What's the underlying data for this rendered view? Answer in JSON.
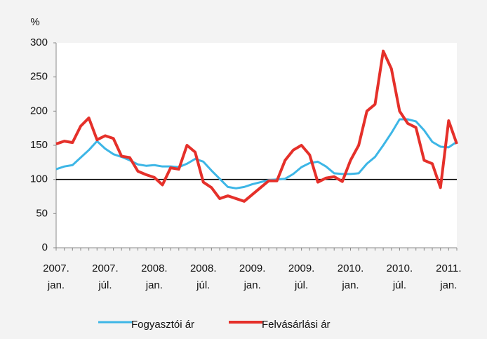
{
  "chart_data": {
    "type": "line",
    "y_label": "%",
    "categories": [
      "2007. jan.",
      null,
      null,
      null,
      null,
      null,
      "2007. júl.",
      null,
      null,
      null,
      null,
      null,
      "2008. jan.",
      null,
      null,
      null,
      null,
      null,
      "2008. júl.",
      null,
      null,
      null,
      null,
      null,
      "2009. jan.",
      null,
      null,
      null,
      null,
      null,
      "2009. júl.",
      null,
      null,
      null,
      null,
      null,
      "2010. jan.",
      null,
      null,
      null,
      null,
      null,
      "2010. júl.",
      null,
      null,
      null,
      null,
      null,
      "2011. jan.",
      null
    ],
    "series": [
      {
        "name": "Fogyasztói ár",
        "color": "#3db6e6",
        "values": [
          115,
          119,
          121,
          132,
          143,
          156,
          145,
          137,
          133,
          128,
          122,
          120,
          121,
          119,
          119,
          118,
          123,
          130,
          126,
          113,
          101,
          89,
          87,
          89,
          93,
          96,
          99,
          100,
          101,
          108,
          118,
          124,
          126,
          119,
          109,
          108,
          108,
          109,
          123,
          133,
          150,
          168,
          188,
          188,
          185,
          172,
          155,
          148,
          147,
          155
        ]
      },
      {
        "name": "Felvásárlási ár",
        "color": "#e5302a",
        "values": [
          152,
          156,
          154,
          178,
          190,
          158,
          164,
          160,
          134,
          132,
          112,
          107,
          103,
          92,
          117,
          115,
          150,
          140,
          96,
          88,
          72,
          76,
          72,
          68,
          78,
          88,
          98,
          98,
          128,
          143,
          150,
          136,
          96,
          102,
          104,
          97,
          128,
          150,
          200,
          210,
          288,
          262,
          200,
          182,
          176,
          128,
          123,
          88,
          186,
          152
        ]
      }
    ],
    "reference_line": 100,
    "ylim": [
      0,
      300
    ],
    "yticks": [
      0,
      50,
      100,
      150,
      200,
      250,
      300
    ]
  }
}
